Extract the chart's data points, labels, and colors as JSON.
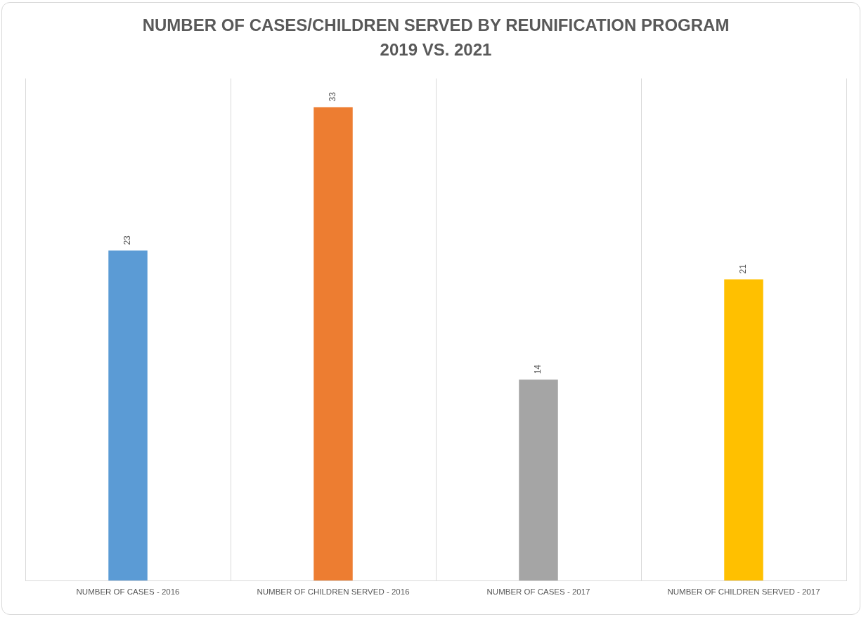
{
  "chart_data": {
    "type": "bar",
    "title": "NUMBER OF CASES/CHILDREN SERVED BY REUNIFICATION PROGRAM\n2019 VS. 2021",
    "categories": [
      "NUMBER OF CASES - 2016",
      "NUMBER OF CHILDREN SERVED - 2016",
      "NUMBER OF CASES - 2017",
      "NUMBER OF CHILDREN SERVED - 2017"
    ],
    "values": [
      23,
      33,
      14,
      21
    ],
    "colors": [
      "#5b9bd5",
      "#ed7d31",
      "#a5a5a5",
      "#ffc000"
    ],
    "data_labels": true,
    "grid": "x",
    "legend": false
  }
}
